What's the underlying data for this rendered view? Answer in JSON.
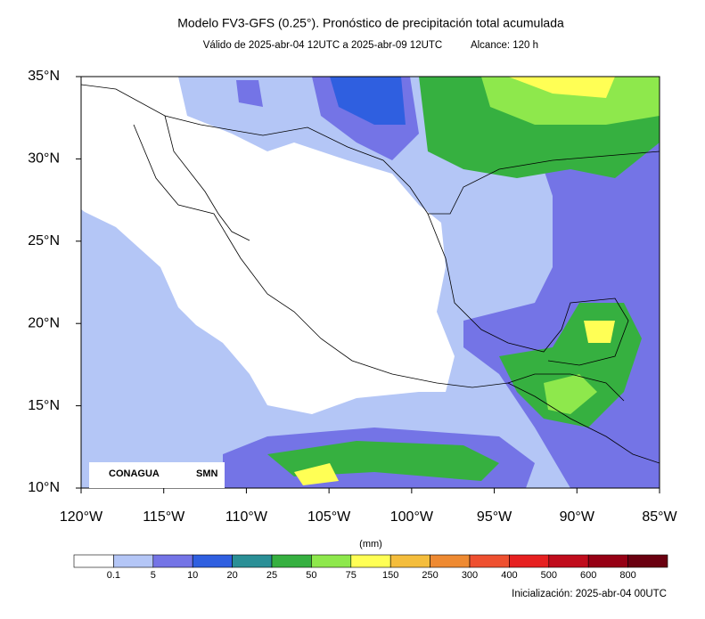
{
  "header": {
    "title": "Modelo FV3-GFS (0.25°). Pronóstico de precipitación total acumulada",
    "valid": "Válido de 2025-abr-04 12UTC a 2025-abr-09 12UTC",
    "lead": "Alcance: 120 h"
  },
  "map": {
    "lonlim": [
      -120,
      -85
    ],
    "latlim": [
      10,
      35
    ],
    "lat_ticks": [
      {
        "value": 10,
        "label": "10°N"
      },
      {
        "value": 15,
        "label": "15°N"
      },
      {
        "value": 20,
        "label": "20°N"
      },
      {
        "value": 25,
        "label": "25°N"
      },
      {
        "value": 30,
        "label": "30°N"
      },
      {
        "value": 35,
        "label": "35°N"
      }
    ],
    "lon_ticks": [
      {
        "value": -120,
        "label": "120°W"
      },
      {
        "value": -115,
        "label": "115°W"
      },
      {
        "value": -110,
        "label": "110°W"
      },
      {
        "value": -105,
        "label": "105°W"
      },
      {
        "value": -100,
        "label": "100°W"
      },
      {
        "value": -95,
        "label": "95°W"
      },
      {
        "value": -90,
        "label": "90°W"
      },
      {
        "value": -85,
        "label": "85°W"
      }
    ]
  },
  "logos": {
    "conagua": "CONAGUA",
    "smn": "SMN"
  },
  "colorbar": {
    "unit": "(mm)",
    "levels": [
      0.1,
      5,
      10,
      20,
      25,
      50,
      75,
      150,
      250,
      300,
      400,
      500,
      600,
      800
    ],
    "colors": [
      "#ffffff",
      "#b4c6f6",
      "#7474e6",
      "#2f5fe0",
      "#2a8f96",
      "#36b040",
      "#8ee84c",
      "#ffff55",
      "#f4bd3c",
      "#ee8a32",
      "#ee5030",
      "#e62020",
      "#c00c1c",
      "#960014",
      "#6a0010"
    ]
  },
  "footer": {
    "init": "Inicialización: 2025-abr-04 00UTC"
  }
}
